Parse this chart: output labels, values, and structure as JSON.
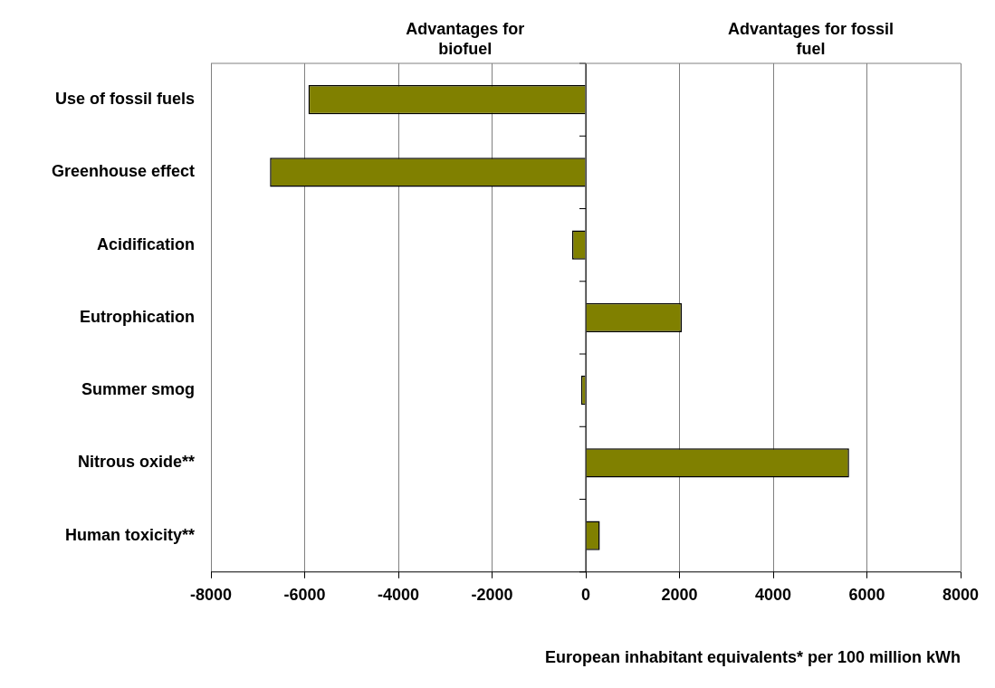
{
  "chart_data": {
    "type": "bar",
    "orientation": "horizontal",
    "categories": [
      "Use of fossil fuels",
      "Greenhouse effect",
      "Acidification",
      "Eutrophication",
      "Summer smog",
      "Nitrous oxide**",
      "Human toxicity**"
    ],
    "values": [
      -5920,
      -6740,
      -290,
      2050,
      -100,
      5620,
      300
    ],
    "color": "#808000",
    "xlabel": "European inhabitant equivalents* per 100 million kWh",
    "xlim": [
      -8000,
      8000
    ],
    "xticks": [
      -8000,
      -6000,
      -4000,
      -2000,
      0,
      2000,
      4000,
      6000,
      8000
    ],
    "grid": "x",
    "legend": false,
    "annotations": [
      "Advantages for biofuel",
      "Advantages for fossil fuel"
    ]
  }
}
